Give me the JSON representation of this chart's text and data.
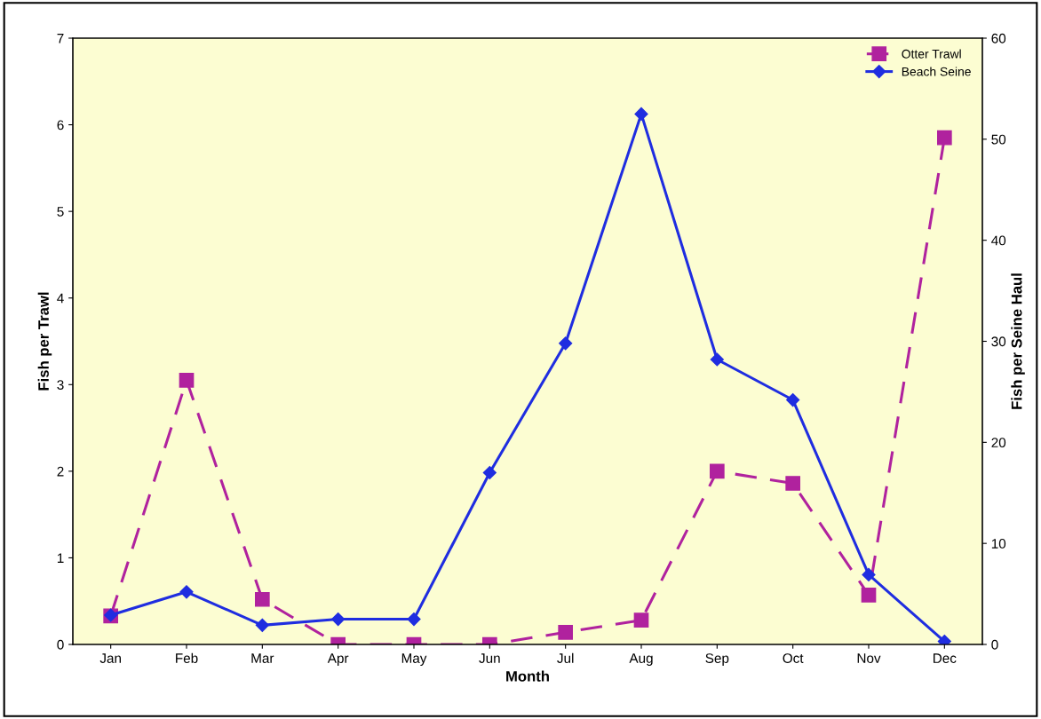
{
  "chart_data": {
    "type": "line",
    "xlabel": "Month",
    "ylabel": "Fish per Trawl",
    "y2label": "Fish per Seine Haul",
    "categories": [
      "Jan",
      "Feb",
      "Mar",
      "Apr",
      "May",
      "Jun",
      "Jul",
      "Aug",
      "Sep",
      "Oct",
      "Nov",
      "Dec"
    ],
    "series": [
      {
        "name": "Otter Trawl",
        "color": "#b0229e",
        "marker": "square",
        "line_style": "dashed",
        "values": [
          0.33,
          3.05,
          0.52,
          0.0,
          0.0,
          0.0,
          0.14,
          0.28,
          2.0,
          1.86,
          0.57,
          5.85
        ]
      },
      {
        "name": "Beach Seine",
        "color": "#1f2de0",
        "marker": "diamond",
        "line_style": "solid",
        "axis": "y2",
        "values": [
          2.9,
          5.2,
          1.9,
          2.5,
          2.5,
          17.0,
          29.8,
          52.5,
          28.2,
          24.2,
          6.9,
          0.3
        ]
      }
    ],
    "ylim": [
      0,
      7
    ],
    "yticks": [
      0,
      1,
      2,
      3,
      4,
      5,
      6,
      7
    ],
    "y2lim": [
      0,
      60
    ],
    "y2ticks": [
      0,
      10,
      20,
      30,
      40,
      50,
      60
    ],
    "grid": false,
    "legend": "top right"
  }
}
